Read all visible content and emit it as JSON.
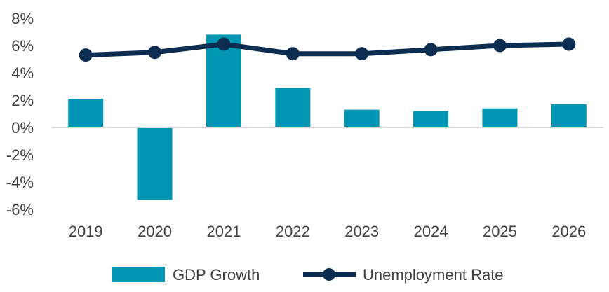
{
  "chart_data": {
    "type": "bar",
    "categories": [
      "2019",
      "2020",
      "2021",
      "2022",
      "2023",
      "2024",
      "2025",
      "2026"
    ],
    "series": [
      {
        "name": "GDP Growth",
        "kind": "bar",
        "color": "#0096B4",
        "values": [
          2.1,
          -5.3,
          6.8,
          2.9,
          1.3,
          1.2,
          1.4,
          1.7
        ]
      },
      {
        "name": "Unemployment Rate",
        "kind": "line",
        "color": "#0C2D4F",
        "values": [
          5.3,
          5.5,
          6.1,
          5.4,
          5.4,
          5.7,
          6.0,
          6.1
        ]
      }
    ],
    "ylim": [
      -6,
      8
    ],
    "yticks": [
      "8%",
      "6%",
      "4%",
      "2%",
      "0%",
      "-2%",
      "-4%",
      "-6%"
    ],
    "ytick_values": [
      8,
      6,
      4,
      2,
      0,
      -2,
      -4,
      -6
    ],
    "title": "",
    "xlabel": "",
    "ylabel": "",
    "legend_position": "bottom",
    "grid": false
  }
}
